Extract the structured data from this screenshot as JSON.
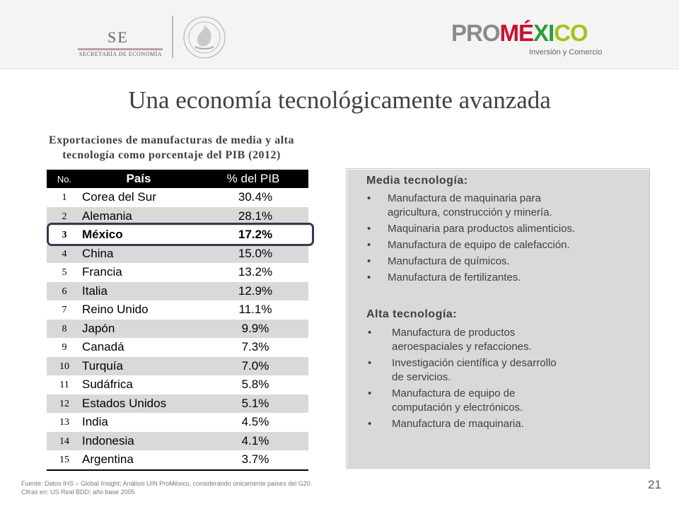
{
  "header": {
    "se_mark": "SE",
    "se_subtitle": "SECRETARÍA DE ECONOMÍA",
    "promexico_pro": "PRO",
    "promexico_me": "MÉ",
    "promexico_xi": "XI",
    "promexico_co": "CO",
    "promexico_tagline": "Inversión y Comercio"
  },
  "title": "Una economía tecnológicamente avanzada",
  "table": {
    "caption_line1": "Exportaciones de manufacturas de media y alta",
    "caption_line2": "tecnología como porcentaje del PIB (2012)",
    "headers": {
      "no": "No.",
      "country": "País",
      "pct": "% del PIB"
    },
    "rows": [
      {
        "no": "1",
        "country": "Corea del Sur",
        "pct": "30.4%"
      },
      {
        "no": "2",
        "country": "Alemania",
        "pct": "28.1%"
      },
      {
        "no": "3",
        "country": "México",
        "pct": "17.2%"
      },
      {
        "no": "4",
        "country": "China",
        "pct": "15.0%"
      },
      {
        "no": "5",
        "country": "Francia",
        "pct": "13.2%"
      },
      {
        "no": "6",
        "country": "Italia",
        "pct": "12.9%"
      },
      {
        "no": "7",
        "country": "Reino Unido",
        "pct": "11.1%"
      },
      {
        "no": "8",
        "country": "Japón",
        "pct": "9.9%"
      },
      {
        "no": "9",
        "country": "Canadá",
        "pct": "7.3%"
      },
      {
        "no": "10",
        "country": "Turquía",
        "pct": "7.0%"
      },
      {
        "no": "11",
        "country": "Sudáfrica",
        "pct": "5.8%"
      },
      {
        "no": "12",
        "country": "Estados Unidos",
        "pct": "5.1%"
      },
      {
        "no": "13",
        "country": "India",
        "pct": "4.5%"
      },
      {
        "no": "14",
        "country": "Indonesia",
        "pct": "4.1%"
      },
      {
        "no": "15",
        "country": "Argentina",
        "pct": "3.7%"
      }
    ]
  },
  "panel": {
    "media_heading": "Media tecnología:",
    "media_items": [
      [
        "Manufactura de maquinaria para",
        "agricultura, construcción y minería."
      ],
      [
        "Maquinaria para productos alimenticios."
      ],
      [
        "Manufactura de equipo de calefacción."
      ],
      [
        "Manufactura de químicos."
      ],
      [
        "Manufactura de fertilizantes."
      ]
    ],
    "alta_heading": "Alta tecnología:",
    "alta_items": [
      [
        "Manufactura de productos",
        "aeroespaciales y refacciones."
      ],
      [
        "Investigación científica y desarrollo",
        "de servicios."
      ],
      [
        "Manufactura de equipo de",
        "computación y electrónicos."
      ],
      [
        "Manufactura de maquinaria."
      ]
    ],
    "bullet": "•"
  },
  "footer": {
    "source_line1": "Fuente: Datos IHS – Global Insight; Análisis UIN ProMéxico, considerando únicamente países del G20.",
    "source_line2": "Cifras en: US Real BDD; año base 2005",
    "page_number": "21"
  },
  "colors": {
    "accent_red": "#c8102e",
    "accent_green": "#2a9d3c",
    "table_alt": "#d9d9d9",
    "panel_bg": "#d9d9d9"
  }
}
